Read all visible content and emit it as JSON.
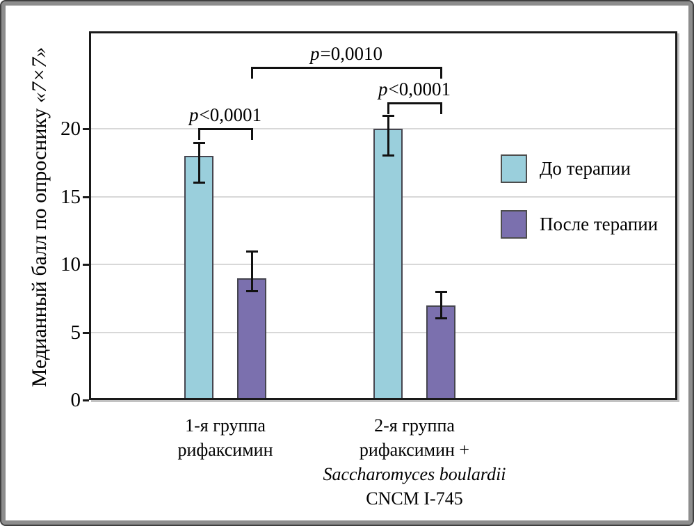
{
  "figure": {
    "background": "#ffffff",
    "frame_color": "#8d8d8d",
    "frame_outline_color": "#3f3f3f"
  },
  "chart_data": {
    "type": "bar",
    "title": "",
    "ylabel_main": "Медианный балл по опроснику ",
    "ylabel_quote": "«7×7»",
    "xlabel": "",
    "ylim": [
      0,
      27
    ],
    "yticks": [
      0,
      5,
      10,
      15,
      20
    ],
    "grid": "horizontal-light-gray",
    "legend_position": "right-inside",
    "categories": [
      "1-я группа рифаксимин",
      "2-я группа рифаксимин + Saccharomyces boulardii CNCM I-745"
    ],
    "categories_lines": [
      [
        "1-я группа",
        "рифаксимин"
      ],
      [
        "2-я группа",
        "рифаксимин +",
        "Saccharomyces boulardii",
        "CNCM I-745"
      ]
    ],
    "series": [
      {
        "name": "До терапии",
        "color": "#9acfdc",
        "values": [
          18,
          20
        ],
        "err_low": [
          16,
          18
        ],
        "err_high": [
          19,
          21
        ]
      },
      {
        "name": "После терапии",
        "color": "#7b70ae",
        "values": [
          9,
          7
        ],
        "err_low": [
          8,
          6
        ],
        "err_high": [
          11,
          8
        ]
      }
    ],
    "p_values": {
      "within_group": [
        "p<0,0001",
        "p<0,0001"
      ],
      "between_groups": "p=0,0010"
    },
    "colors": {
      "before_therapy": "#9acfdc",
      "after_therapy": "#7b70ae",
      "axis": "#1a1a1a",
      "gridline": "#d8d8d8",
      "error_bar": "#111111"
    }
  }
}
